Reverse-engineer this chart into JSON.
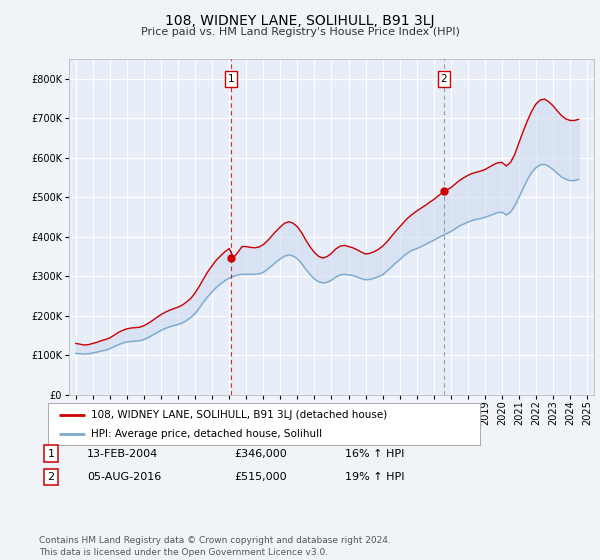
{
  "title": "108, WIDNEY LANE, SOLIHULL, B91 3LJ",
  "subtitle": "Price paid vs. HM Land Registry's House Price Index (HPI)",
  "background_color": "#f0f4f8",
  "plot_bg_color": "#e8eef8",
  "grid_color": "#ffffff",
  "red_color": "#cc0000",
  "blue_color": "#7aaad0",
  "fill_color": "#ccd9ee",
  "ylim": [
    0,
    850000
  ],
  "yticks": [
    0,
    100000,
    200000,
    300000,
    400000,
    500000,
    600000,
    700000,
    800000
  ],
  "xlim_start": 1994.6,
  "xlim_end": 2025.4,
  "xtick_years": [
    1995,
    1996,
    1997,
    1998,
    1999,
    2000,
    2001,
    2002,
    2003,
    2004,
    2005,
    2006,
    2007,
    2008,
    2009,
    2010,
    2011,
    2012,
    2013,
    2014,
    2015,
    2016,
    2017,
    2018,
    2019,
    2020,
    2021,
    2022,
    2023,
    2024,
    2025
  ],
  "transaction1_x": 2004.11,
  "transaction1_y": 346000,
  "transaction1_label": "1",
  "transaction1_date": "13-FEB-2004",
  "transaction1_price": "£346,000",
  "transaction1_hpi": "16% ↑ HPI",
  "transaction2_x": 2016.58,
  "transaction2_y": 515000,
  "transaction2_label": "2",
  "transaction2_date": "05-AUG-2016",
  "transaction2_price": "£515,000",
  "transaction2_hpi": "19% ↑ HPI",
  "legend_label_red": "108, WIDNEY LANE, SOLIHULL, B91 3LJ (detached house)",
  "legend_label_blue": "HPI: Average price, detached house, Solihull",
  "footer": "Contains HM Land Registry data © Crown copyright and database right 2024.\nThis data is licensed under the Open Government Licence v3.0.",
  "hpi_data": {
    "years": [
      1995.0,
      1995.25,
      1995.5,
      1995.75,
      1996.0,
      1996.25,
      1996.5,
      1996.75,
      1997.0,
      1997.25,
      1997.5,
      1997.75,
      1998.0,
      1998.25,
      1998.5,
      1998.75,
      1999.0,
      1999.25,
      1999.5,
      1999.75,
      2000.0,
      2000.25,
      2000.5,
      2000.75,
      2001.0,
      2001.25,
      2001.5,
      2001.75,
      2002.0,
      2002.25,
      2002.5,
      2002.75,
      2003.0,
      2003.25,
      2003.5,
      2003.75,
      2004.0,
      2004.25,
      2004.5,
      2004.75,
      2005.0,
      2005.25,
      2005.5,
      2005.75,
      2006.0,
      2006.25,
      2006.5,
      2006.75,
      2007.0,
      2007.25,
      2007.5,
      2007.75,
      2008.0,
      2008.25,
      2008.5,
      2008.75,
      2009.0,
      2009.25,
      2009.5,
      2009.75,
      2010.0,
      2010.25,
      2010.5,
      2010.75,
      2011.0,
      2011.25,
      2011.5,
      2011.75,
      2012.0,
      2012.25,
      2012.5,
      2012.75,
      2013.0,
      2013.25,
      2013.5,
      2013.75,
      2014.0,
      2014.25,
      2014.5,
      2014.75,
      2015.0,
      2015.25,
      2015.5,
      2015.75,
      2016.0,
      2016.25,
      2016.5,
      2016.75,
      2017.0,
      2017.25,
      2017.5,
      2017.75,
      2018.0,
      2018.25,
      2018.5,
      2018.75,
      2019.0,
      2019.25,
      2019.5,
      2019.75,
      2020.0,
      2020.25,
      2020.5,
      2020.75,
      2021.0,
      2021.25,
      2021.5,
      2021.75,
      2022.0,
      2022.25,
      2022.5,
      2022.75,
      2023.0,
      2023.25,
      2023.5,
      2023.75,
      2024.0,
      2024.25,
      2024.5
    ],
    "values": [
      105000,
      104000,
      103000,
      104000,
      106000,
      108000,
      111000,
      113000,
      117000,
      122000,
      127000,
      131000,
      134000,
      135000,
      136000,
      137000,
      140000,
      145000,
      151000,
      157000,
      163000,
      168000,
      172000,
      175000,
      178000,
      182000,
      188000,
      196000,
      206000,
      220000,
      235000,
      249000,
      261000,
      272000,
      281000,
      289000,
      295000,
      300000,
      303000,
      305000,
      305000,
      305000,
      305000,
      306000,
      310000,
      318000,
      327000,
      336000,
      344000,
      351000,
      354000,
      351000,
      344000,
      332000,
      317000,
      304000,
      293000,
      286000,
      283000,
      285000,
      290000,
      298000,
      303000,
      305000,
      303000,
      302000,
      298000,
      294000,
      291000,
      292000,
      295000,
      299000,
      304000,
      313000,
      323000,
      333000,
      342000,
      352000,
      360000,
      366000,
      370000,
      375000,
      380000,
      386000,
      391000,
      397000,
      403000,
      408000,
      413000,
      420000,
      427000,
      432000,
      437000,
      441000,
      444000,
      446000,
      449000,
      453000,
      457000,
      461000,
      462000,
      455000,
      462000,
      478000,
      500000,
      523000,
      545000,
      563000,
      575000,
      582000,
      583000,
      578000,
      570000,
      560000,
      551000,
      545000,
      542000,
      542000,
      545000
    ]
  },
  "price_data": {
    "years": [
      1995.0,
      1995.25,
      1995.5,
      1995.75,
      1996.0,
      1996.25,
      1996.5,
      1996.75,
      1997.0,
      1997.25,
      1997.5,
      1997.75,
      1998.0,
      1998.25,
      1998.5,
      1998.75,
      1999.0,
      1999.25,
      1999.5,
      1999.75,
      2000.0,
      2000.25,
      2000.5,
      2000.75,
      2001.0,
      2001.25,
      2001.5,
      2001.75,
      2002.0,
      2002.25,
      2002.5,
      2002.75,
      2003.0,
      2003.25,
      2003.5,
      2003.75,
      2004.0,
      2004.25,
      2004.5,
      2004.75,
      2005.0,
      2005.25,
      2005.5,
      2005.75,
      2006.0,
      2006.25,
      2006.5,
      2006.75,
      2007.0,
      2007.25,
      2007.5,
      2007.75,
      2008.0,
      2008.25,
      2008.5,
      2008.75,
      2009.0,
      2009.25,
      2009.5,
      2009.75,
      2010.0,
      2010.25,
      2010.5,
      2010.75,
      2011.0,
      2011.25,
      2011.5,
      2011.75,
      2012.0,
      2012.25,
      2012.5,
      2012.75,
      2013.0,
      2013.25,
      2013.5,
      2013.75,
      2014.0,
      2014.25,
      2014.5,
      2014.75,
      2015.0,
      2015.25,
      2015.5,
      2015.75,
      2016.0,
      2016.25,
      2016.5,
      2016.75,
      2017.0,
      2017.25,
      2017.5,
      2017.75,
      2018.0,
      2018.25,
      2018.5,
      2018.75,
      2019.0,
      2019.25,
      2019.5,
      2019.75,
      2020.0,
      2020.25,
      2020.5,
      2020.75,
      2021.0,
      2021.25,
      2021.5,
      2021.75,
      2022.0,
      2022.25,
      2022.5,
      2022.75,
      2023.0,
      2023.25,
      2023.5,
      2023.75,
      2024.0,
      2024.25,
      2024.5
    ],
    "values": [
      130000,
      128000,
      126000,
      127000,
      130000,
      133000,
      137000,
      140000,
      144000,
      151000,
      158000,
      163000,
      167000,
      169000,
      170000,
      171000,
      175000,
      181000,
      188000,
      196000,
      203000,
      209000,
      214000,
      218000,
      222000,
      227000,
      235000,
      244000,
      258000,
      275000,
      294000,
      312000,
      327000,
      341000,
      352000,
      362000,
      370000,
      347000,
      360000,
      375000,
      375000,
      373000,
      372000,
      374000,
      380000,
      390000,
      402000,
      414000,
      425000,
      434000,
      438000,
      434000,
      425000,
      410000,
      391000,
      374000,
      360000,
      350000,
      346000,
      350000,
      358000,
      369000,
      376000,
      378000,
      375000,
      372000,
      367000,
      361000,
      356000,
      358000,
      362000,
      368000,
      376000,
      387000,
      400000,
      413000,
      425000,
      437000,
      448000,
      457000,
      465000,
      472000,
      479000,
      487000,
      494000,
      503000,
      511000,
      518000,
      524000,
      533000,
      542000,
      549000,
      555000,
      560000,
      563000,
      566000,
      570000,
      576000,
      582000,
      587000,
      588000,
      579000,
      588000,
      608000,
      638000,
      667000,
      694000,
      718000,
      736000,
      746000,
      748000,
      741000,
      731000,
      718000,
      706000,
      698000,
      694000,
      694000,
      697000
    ]
  }
}
